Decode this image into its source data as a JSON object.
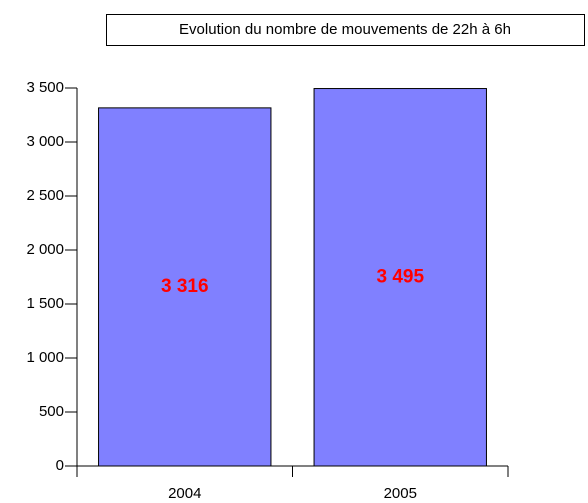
{
  "chart_data": {
    "type": "bar",
    "title": "Evolution du nombre de mouvements de 22h à 6h",
    "categories": [
      "2004",
      "2005"
    ],
    "values": [
      3316,
      3495
    ],
    "value_labels": [
      "3 316",
      "3 495"
    ],
    "color": "#8080ff",
    "ylim": [
      0,
      3500
    ],
    "yticks": [
      0,
      500,
      {
        "value": 1000,
        "label": "1 000"
      },
      {
        "value": 1500,
        "label": "1 500"
      },
      {
        "value": 2000,
        "label": "2 000"
      },
      {
        "value": 2500,
        "label": "2 500"
      },
      {
        "value": 3000,
        "label": "3 000"
      },
      {
        "value": 3500,
        "label": "3 500"
      }
    ],
    "grid": false
  }
}
